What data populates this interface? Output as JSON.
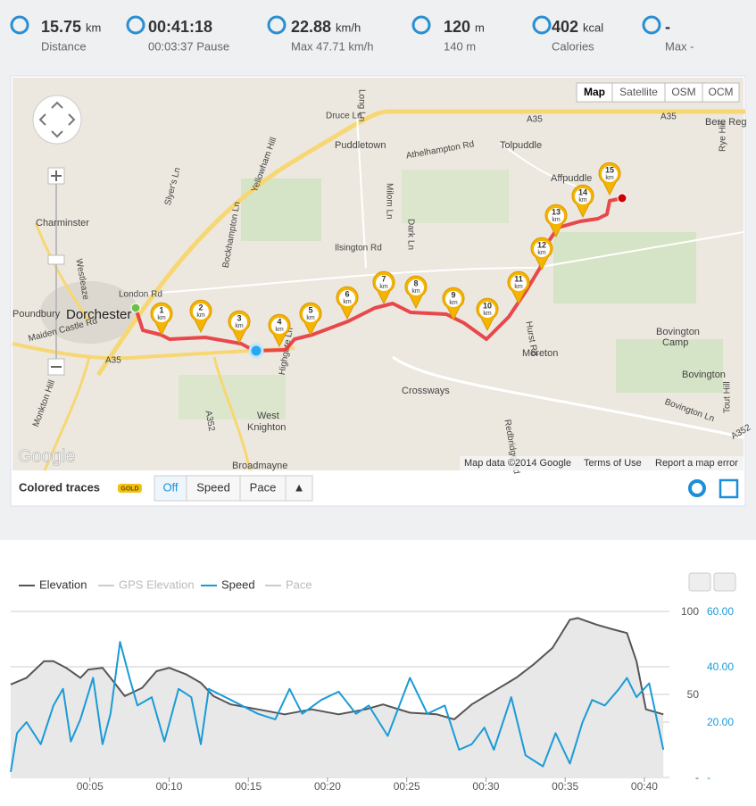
{
  "stats": [
    {
      "value": "15.75",
      "unit": "km",
      "sub": "Distance"
    },
    {
      "value": "00:41:18",
      "unit": "",
      "sub": "00:03:37 Pause"
    },
    {
      "value": "22.88",
      "unit": "km/h",
      "sub": "Max 47.71 km/h"
    },
    {
      "value": "120",
      "unit": "m",
      "sub": "140 m"
    },
    {
      "value": "402",
      "unit": "kcal",
      "sub": "Calories"
    },
    {
      "value": "-",
      "unit": "",
      "sub": "Max -"
    }
  ],
  "map": {
    "types": [
      "Map",
      "Satellite",
      "OSM",
      "OCM"
    ],
    "labels": [
      "Dorchester",
      "Charminster",
      "Poundbury",
      "Puddletown",
      "Tolpuddle",
      "Affpuddle",
      "Moreton",
      "Crossways",
      "West",
      "Knighton",
      "Broadmayne",
      "Bovington",
      "Camp",
      "Bovington",
      "Bere Reg",
      "A35",
      "A35",
      "A35",
      "London Rd",
      "Yellowham Hill",
      "Druce Ln",
      "Athelhampton Rd",
      "Ilsington Rd",
      "Bockhampton Ln",
      "Slyer's Ln",
      "Long Ln",
      "Milom Ln",
      "Dark Ln",
      "Hurst Rd",
      "Redbridge Rd",
      "Bovington Ln",
      "Highgate Ln",
      "A352",
      "A352",
      "Maiden Castle Rd",
      "Monkton Hill",
      "Westleaze",
      "Tout Hill",
      "Rye Hill"
    ],
    "markers": [
      "1",
      "2",
      "3",
      "4",
      "5",
      "6",
      "7",
      "8",
      "9",
      "10",
      "11",
      "12",
      "13",
      "14",
      "15"
    ],
    "marker_unit": "km",
    "logo": "Google",
    "attribution": "Map data ©2014 Google",
    "terms": "Terms of Use",
    "report": "Report a map error"
  },
  "traces": {
    "label": "Colored traces",
    "badge": "GOLD",
    "options": [
      "Off",
      "Speed",
      "Pace",
      "▲"
    ]
  },
  "chart_data": {
    "type": "line",
    "xlim": [
      0,
      41.3
    ],
    "xticks": [
      {
        "value": 5,
        "label": "00:05"
      },
      {
        "value": 10,
        "label": "00:10"
      },
      {
        "value": 15,
        "label": "00:15"
      },
      {
        "value": 20,
        "label": "00:20"
      },
      {
        "value": 25,
        "label": "00:25"
      },
      {
        "value": 30,
        "label": "00:30"
      },
      {
        "value": 35,
        "label": "00:35"
      },
      {
        "value": 40,
        "label": "00:40"
      }
    ],
    "ylim": [
      0,
      100
    ],
    "yticks": [
      {
        "value": 0,
        "label": "-"
      },
      50,
      100
    ],
    "y2lim": [
      0,
      60
    ],
    "y2ticks": [
      {
        "value": 0,
        "label": "-"
      },
      {
        "value": 20,
        "label": "20.00"
      },
      {
        "value": 40,
        "label": "40.00"
      },
      {
        "value": 60,
        "label": "60.00"
      }
    ],
    "grid": true,
    "series": [
      {
        "name": "Elevation",
        "color": "#555555",
        "area": true,
        "x": [
          0,
          1.0,
          2.1,
          2.7,
          3.5,
          4.4,
          4.9,
          5.8,
          6.3,
          7.2,
          8.3,
          9.2,
          10.0,
          11.1,
          12.0,
          12.8,
          13.9,
          15.6,
          17.3,
          19.0,
          20.7,
          22.4,
          23.5,
          25.2,
          26.9,
          28.0,
          29.1,
          30.5,
          31.9,
          33.0,
          34.2,
          35.3,
          35.8,
          37.0,
          38.1,
          38.9,
          39.5,
          40.1,
          41.2
        ],
        "values": [
          56,
          60,
          70,
          70,
          66,
          60,
          65,
          66,
          60,
          49,
          54,
          64,
          66,
          62,
          57,
          49,
          44,
          41,
          38,
          41,
          38,
          41,
          44,
          39,
          38,
          35,
          44,
          52,
          60,
          68,
          78,
          95,
          96,
          92,
          89,
          87,
          70,
          41,
          38
        ]
      },
      {
        "name": "GPS Elevation",
        "color": "#cccccc",
        "x": [],
        "values": []
      },
      {
        "name": "Speed",
        "color": "#1a9bd7",
        "axis": "y2",
        "x": [
          0,
          0.4,
          1.0,
          1.9,
          2.7,
          3.3,
          3.8,
          4.4,
          5.2,
          5.8,
          6.3,
          6.9,
          7.5,
          8.0,
          8.9,
          9.7,
          10.6,
          11.4,
          12.0,
          12.5,
          13.9,
          15.6,
          16.7,
          17.6,
          18.4,
          19.6,
          20.7,
          21.8,
          22.6,
          23.8,
          25.2,
          26.3,
          27.4,
          28.3,
          29.1,
          29.9,
          30.5,
          31.6,
          32.5,
          33.6,
          34.4,
          35.3,
          36.1,
          36.7,
          37.5,
          38.4,
          38.9,
          39.5,
          40.3,
          41.2
        ],
        "values": [
          2,
          16,
          20,
          12,
          26,
          32,
          13,
          21,
          36,
          12,
          23,
          49,
          36,
          26,
          29,
          13,
          32,
          29,
          12,
          32,
          28,
          23,
          21,
          32,
          23,
          28,
          31,
          23,
          26,
          15,
          36,
          23,
          26,
          10,
          12,
          18,
          10,
          29,
          8,
          4,
          16,
          5,
          20,
          28,
          26,
          32,
          36,
          29,
          34,
          10
        ]
      },
      {
        "name": "Pace",
        "color": "#cccccc",
        "x": [],
        "values": []
      }
    ]
  }
}
